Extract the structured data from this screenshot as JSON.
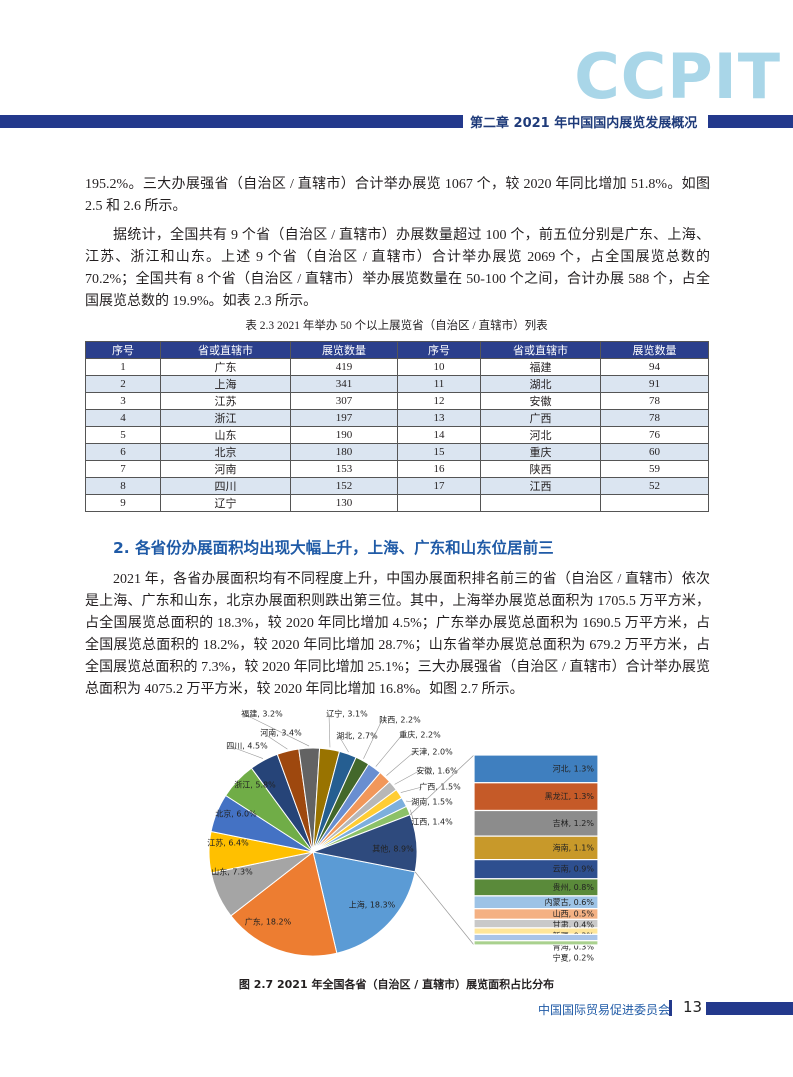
{
  "header": {
    "logo": "CCPIT",
    "chapter": "第二章  2021 年中国国内展览发展概况"
  },
  "paragraphs": [
    "195.2%。三大办展强省（自治区 / 直辖市）合计举办展览 1067 个，较 2020 年同比增加 51.8%。如图 2.5 和 2.6 所示。",
    "据统计，全国共有 9 个省（自治区 / 直辖市）办展数量超过 100 个，前五位分别是广东、上海、江苏、浙江和山东。上述 9 个省（自治区 / 直辖市）合计举办展览 2069 个，占全国展览总数的 70.2%；全国共有 8 个省（自治区 / 直辖市）举办展览数量在 50-100 个之间，合计办展 588 个，占全国展览总数的 19.9%。如表 2.3 所示。"
  ],
  "table": {
    "caption": "表 2.3  2021 年举办 50 个以上展览省（自治区 / 直辖市）列表",
    "columns": [
      "序号",
      "省或直辖市",
      "展览数量",
      "序号",
      "省或直辖市",
      "展览数量"
    ],
    "rows": [
      [
        1,
        "广东",
        419,
        10,
        "福建",
        94
      ],
      [
        2,
        "上海",
        341,
        11,
        "湖北",
        91
      ],
      [
        3,
        "江苏",
        307,
        12,
        "安徽",
        78
      ],
      [
        4,
        "浙江",
        197,
        13,
        "广西",
        78
      ],
      [
        5,
        "山东",
        190,
        14,
        "河北",
        76
      ],
      [
        6,
        "北京",
        180,
        15,
        "重庆",
        60
      ],
      [
        7,
        "河南",
        153,
        16,
        "陕西",
        59
      ],
      [
        8,
        "四川",
        152,
        17,
        "江西",
        52
      ],
      [
        9,
        "辽宁",
        130
      ]
    ]
  },
  "section_heading": "2. 各省份办展面积均出现大幅上升，上海、广东和山东位居前三",
  "paragraphs2": [
    "2021 年，各省办展面积均有不同程度上升，中国办展面积排名前三的省（自治区 / 直辖市）依次是上海、广东和山东，北京办展面积则跌出第三位。其中，上海举办展览总面积为 1705.5 万平方米，占全国展览总面积的 18.3%，较 2020 年同比增加 4.5%；广东举办展览总面积为 1690.5 万平方米，占全国展览总面积的 18.2%，较 2020 年同比增加 28.7%；山东省举办展览总面积为 679.2 万平方米，占全国展览总面积的 7.3%，较 2020 年同比增加 25.1%；三大办展强省（自治区 / 直辖市）合计举办展览总面积为 4075.2 万平方米，较 2020 年同比增加 16.8%。如图 2.7 所示。"
  ],
  "chart_data": {
    "type": "pie",
    "title": "图 2.7  2021 年全国各省（自治区 / 直辖市）展览面积占比分布",
    "values": [
      18.3,
      18.2,
      7.3,
      6.4,
      6.0,
      5.8,
      4.5,
      3.4,
      3.2,
      3.1,
      2.7,
      2.2,
      2.2,
      2.0,
      1.6,
      1.5,
      1.5,
      1.4,
      8.9
    ],
    "value_labels": [
      "上海, 18.3%",
      "广东, 18.2%",
      "山东, 7.3%",
      "江苏, 6.4%",
      "北京, 6.0%",
      "浙江, 5.8%",
      "四川, 4.5%",
      "河南, 3.4%",
      "福建, 3.2%",
      "辽宁, 3.1%",
      "湖北, 2.7%",
      "陕西, 2.2%",
      "重庆, 2.2%",
      "天津, 2.0%",
      "安徽, 1.6%",
      "广西, 1.5%",
      "湖南, 1.5%",
      "江西, 1.4%",
      "其他, 8.9%"
    ],
    "colors": [
      "#5b9bd5",
      "#ed7d31",
      "#a5a5a5",
      "#ffc000",
      "#4472c4",
      "#70ad47",
      "#264478",
      "#9e480e",
      "#636363",
      "#997300",
      "#255e91",
      "#43682b",
      "#698ed0",
      "#f1975a",
      "#b7b7b7",
      "#ffcd33",
      "#7cafdd",
      "#8cc168",
      "#2e4a7d"
    ],
    "breakdown": {
      "values": [
        1.3,
        1.3,
        1.2,
        1.1,
        0.9,
        0.8,
        0.6,
        0.5,
        0.4,
        0.3,
        0.3,
        0.2
      ],
      "value_labels": [
        "河北, 1.3%",
        "黑龙江, 1.3%",
        "吉林, 1.2%",
        "海南, 1.1%",
        "云南, 0.9%",
        "贵州, 0.8%",
        "内蒙古, 0.6%",
        "山西, 0.5%",
        "甘肃, 0.4%",
        "新疆, 0.3%",
        "青海, 0.3%",
        "宁夏, 0.2%"
      ],
      "colors": [
        "#3f7fbf",
        "#c55a28",
        "#8c8c8c",
        "#c8992a",
        "#2e4f8f",
        "#5a8a3a",
        "#9dc3e6",
        "#f4b183",
        "#c9c9c9",
        "#ffe699",
        "#a9c4e8",
        "#a9d18e"
      ]
    }
  },
  "footer": {
    "organization": "中国国际贸易促进委员会",
    "page": 13
  }
}
